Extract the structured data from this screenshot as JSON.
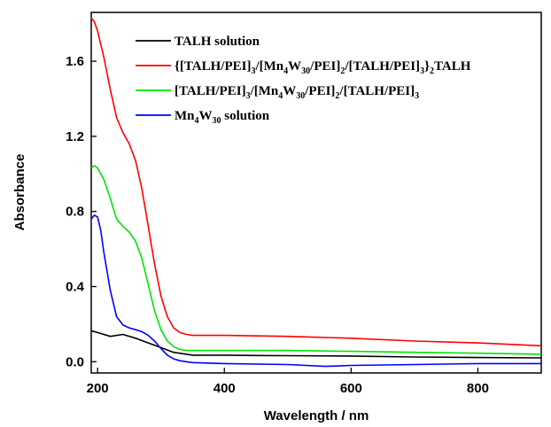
{
  "chart_data": {
    "type": "line",
    "title": "",
    "xlabel": "Wavelength / nm",
    "ylabel": "Absorbance",
    "xlim": [
      190,
      900
    ],
    "ylim": [
      -0.06,
      1.86
    ],
    "xticks": [
      200,
      400,
      600,
      800
    ],
    "yticks": [
      0.0,
      0.4,
      0.8,
      1.2,
      1.6
    ],
    "xtick_labels": [
      "200",
      "400",
      "600",
      "800"
    ],
    "ytick_labels": [
      "0.0",
      "0.4",
      "0.8",
      "1.2",
      "1.6"
    ],
    "grid": false,
    "legend_position": "top-right",
    "series": [
      {
        "name": "TALH solution",
        "legend_parts": [
          {
            "t": "TALH solution",
            "s": "n"
          }
        ],
        "color": "#000000",
        "x": [
          190,
          200,
          220,
          240,
          260,
          280,
          300,
          320,
          350,
          400,
          450,
          500,
          600,
          700,
          800,
          900
        ],
        "y": [
          0.165,
          0.155,
          0.135,
          0.145,
          0.125,
          0.1,
          0.075,
          0.05,
          0.035,
          0.035,
          0.033,
          0.032,
          0.03,
          0.025,
          0.022,
          0.02
        ]
      },
      {
        "name": "{[TALH/PEI]3/[Mn4W30/PEI]2/[TALH/PEI]3}2TALH",
        "legend_parts": [
          {
            "t": "{[TALH/PEI]",
            "s": "n"
          },
          {
            "t": "3",
            "s": "sub"
          },
          {
            "t": "/[Mn",
            "s": "n"
          },
          {
            "t": "4",
            "s": "sub"
          },
          {
            "t": "W",
            "s": "n"
          },
          {
            "t": "30",
            "s": "sub"
          },
          {
            "t": "/PEI]",
            "s": "n"
          },
          {
            "t": "2",
            "s": "sub"
          },
          {
            "t": "/[TALH/PEI]",
            "s": "n"
          },
          {
            "t": "3",
            "s": "sub"
          },
          {
            "t": "}",
            "s": "n"
          },
          {
            "t": "2",
            "s": "sub"
          },
          {
            "t": "TALH",
            "s": "n"
          }
        ],
        "color": "#ff0000",
        "x": [
          190,
          195,
          200,
          210,
          220,
          230,
          240,
          250,
          260,
          270,
          280,
          290,
          300,
          310,
          320,
          330,
          340,
          350,
          360,
          400,
          500,
          600,
          700,
          800,
          900
        ],
        "y": [
          1.83,
          1.81,
          1.76,
          1.62,
          1.45,
          1.3,
          1.22,
          1.16,
          1.07,
          0.92,
          0.72,
          0.52,
          0.35,
          0.24,
          0.18,
          0.155,
          0.145,
          0.14,
          0.14,
          0.14,
          0.135,
          0.125,
          0.11,
          0.1,
          0.085
        ]
      },
      {
        "name": "[TALH/PEI]3/[Mn4W30/PEI]2/[TALH/PEI]3",
        "legend_parts": [
          {
            "t": "[TALH/PEI]",
            "s": "n"
          },
          {
            "t": "3",
            "s": "sub"
          },
          {
            "t": "/[Mn",
            "s": "n"
          },
          {
            "t": "4",
            "s": "sub"
          },
          {
            "t": "W",
            "s": "n"
          },
          {
            "t": "30",
            "s": "sub"
          },
          {
            "t": "/PEI]",
            "s": "n"
          },
          {
            "t": "2",
            "s": "sub"
          },
          {
            "t": "/[TALH/PEI]",
            "s": "n"
          },
          {
            "t": "3",
            "s": "sub"
          }
        ],
        "color": "#00e600",
        "x": [
          190,
          195,
          200,
          210,
          220,
          230,
          240,
          250,
          260,
          270,
          280,
          290,
          300,
          310,
          320,
          330,
          340,
          350,
          400,
          500,
          600,
          700,
          800,
          900
        ],
        "y": [
          1.03,
          1.045,
          1.03,
          0.97,
          0.87,
          0.76,
          0.72,
          0.69,
          0.64,
          0.55,
          0.41,
          0.27,
          0.17,
          0.11,
          0.08,
          0.065,
          0.06,
          0.06,
          0.06,
          0.06,
          0.055,
          0.05,
          0.045,
          0.04
        ]
      },
      {
        "name": "Mn4W30 solution",
        "legend_parts": [
          {
            "t": "Mn",
            "s": "n"
          },
          {
            "t": "4",
            "s": "sub"
          },
          {
            "t": "W",
            "s": "n"
          },
          {
            "t": "30",
            "s": "sub"
          },
          {
            "t": " solution",
            "s": "n"
          }
        ],
        "color": "#0000ff",
        "x": [
          190,
          195,
          200,
          205,
          210,
          220,
          230,
          240,
          250,
          260,
          270,
          280,
          290,
          300,
          310,
          320,
          330,
          340,
          350,
          400,
          500,
          560,
          600,
          700,
          800,
          900
        ],
        "y": [
          0.76,
          0.78,
          0.77,
          0.7,
          0.58,
          0.38,
          0.24,
          0.195,
          0.18,
          0.17,
          0.16,
          0.14,
          0.11,
          0.07,
          0.035,
          0.015,
          0.005,
          0.0,
          -0.005,
          -0.01,
          -0.015,
          -0.025,
          -0.02,
          -0.015,
          -0.01,
          -0.01
        ]
      }
    ]
  }
}
